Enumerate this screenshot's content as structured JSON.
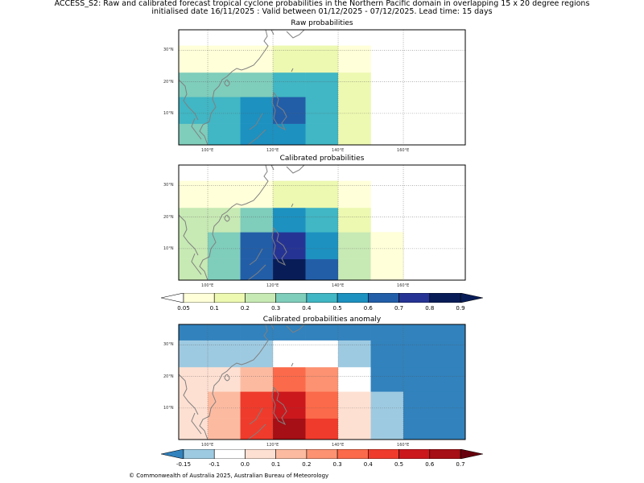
{
  "header": {
    "title_line1": "ACCESS_S2: Raw and calibrated forecast tropical cyclone probabilities in the Northern Pacific domain in overlapping 15 x 20 degree regions",
    "title_line2": "initialised date 16/11/2025 :  Valid between 01/12/2025 - 07/12/2025. Lead time: 15 days"
  },
  "footer": "© Commonwealth of Australia 2025, Australian Bureau of Meteorology",
  "chart_data": [
    {
      "type": "heatmap",
      "title": "Raw probabilities",
      "lon_edges": [
        90,
        100,
        110,
        120,
        130,
        140,
        150,
        160,
        180
      ],
      "lat_edges": [
        0,
        6.75,
        15.25,
        23,
        31.5,
        36.5
      ],
      "lon_ticks": [
        "100°E",
        "120°E",
        "140°E",
        "160°E"
      ],
      "lat_ticks": [
        "10°N",
        "20°N",
        "30°N"
      ],
      "scale": "prob",
      "rows": [
        [
          0.35,
          0.45,
          0.55,
          0.55,
          0.45,
          0.15,
          null,
          null
        ],
        [
          0.45,
          0.45,
          0.55,
          0.65,
          0.45,
          0.15,
          null,
          null
        ],
        [
          0.35,
          0.35,
          0.35,
          0.45,
          0.45,
          0.15,
          null,
          null
        ],
        [
          0.07,
          0.07,
          0.07,
          0.15,
          0.15,
          0.07,
          null,
          null
        ],
        [
          null,
          null,
          null,
          null,
          null,
          null,
          null,
          null
        ]
      ]
    },
    {
      "type": "heatmap",
      "title": "Calibrated probabilities",
      "lon_edges": [
        90,
        100,
        110,
        120,
        130,
        140,
        150,
        160,
        180
      ],
      "lat_edges": [
        0,
        6.75,
        15.25,
        23,
        31.5,
        36.5
      ],
      "lon_ticks": [
        "100°E",
        "120°E",
        "140°E",
        "160°E"
      ],
      "lat_ticks": [
        "10°N",
        "20°N",
        "30°N"
      ],
      "scale": "prob",
      "rows": [
        [
          0.25,
          0.35,
          0.65,
          0.85,
          0.65,
          0.25,
          0.07,
          null
        ],
        [
          0.25,
          0.35,
          0.65,
          0.75,
          0.55,
          0.25,
          0.07,
          null
        ],
        [
          0.25,
          0.25,
          0.35,
          0.55,
          0.45,
          0.15,
          null,
          null
        ],
        [
          0.07,
          0.07,
          0.07,
          0.15,
          0.15,
          0.07,
          null,
          null
        ],
        [
          null,
          null,
          null,
          null,
          null,
          null,
          null,
          null
        ]
      ]
    },
    {
      "type": "heatmap",
      "title": "Calibrated probabilities anomaly",
      "lon_edges": [
        90,
        100,
        110,
        120,
        130,
        140,
        150,
        160,
        180
      ],
      "lat_edges": [
        0,
        6.75,
        15.25,
        23,
        31.5,
        36.5
      ],
      "lon_ticks": [
        "100°E",
        "120°E",
        "140°E",
        "160°E"
      ],
      "lat_ticks": [
        "10°N",
        "20°N",
        "30°N"
      ],
      "scale": "anom",
      "rows": [
        [
          0.05,
          0.15,
          0.45,
          0.65,
          0.45,
          0.05,
          -0.12,
          -0.2
        ],
        [
          0.05,
          0.15,
          0.45,
          0.55,
          0.35,
          0.05,
          -0.12,
          -0.2
        ],
        [
          0.05,
          0.05,
          0.15,
          0.35,
          0.25,
          -0.05,
          -0.2,
          -0.2
        ],
        [
          -0.12,
          -0.12,
          -0.12,
          -0.05,
          -0.05,
          -0.12,
          -0.2,
          -0.2
        ],
        [
          -0.2,
          -0.2,
          -0.2,
          -0.2,
          -0.2,
          -0.2,
          -0.2,
          -0.2
        ]
      ]
    }
  ],
  "scales": {
    "prob": {
      "levels": [
        "0.05",
        "0.1",
        "0.2",
        "0.3",
        "0.4",
        "0.5",
        "0.6",
        "0.7",
        "0.8",
        "0.9"
      ],
      "under": "#ffffff",
      "over": "#081d58",
      "colors": [
        "#ffffd9",
        "#edf8b1",
        "#c7e9b4",
        "#7fcdbb",
        "#41b6c4",
        "#1d91c0",
        "#225ea8",
        "#253494",
        "#081d58"
      ]
    },
    "anom": {
      "levels": [
        "-0.15",
        "-0.1",
        "0.0",
        "0.1",
        "0.2",
        "0.3",
        "0.4",
        "0.5",
        "0.6",
        "0.7"
      ],
      "under": "#3182bd",
      "over": "#67000d",
      "colors": [
        "#9ecae1",
        "#ffffff",
        "#fee0d2",
        "#fcbba1",
        "#fc9272",
        "#fb6a4a",
        "#ef3b2c",
        "#cb181d",
        "#a50f15"
      ]
    }
  }
}
